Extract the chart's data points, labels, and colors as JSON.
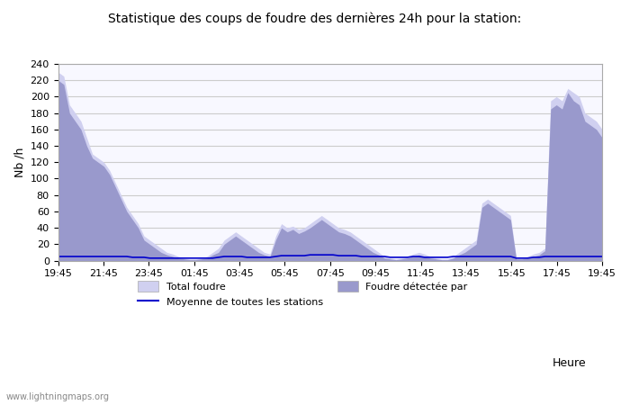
{
  "title": "Statistique des coups de foudre des dernières 24h pour la station:",
  "xlabel": "Heure",
  "ylabel": "Nb /h",
  "ylim": [
    0,
    240
  ],
  "yticks": [
    0,
    20,
    40,
    60,
    80,
    100,
    120,
    140,
    160,
    180,
    200,
    220,
    240
  ],
  "x_labels": [
    "19:45",
    "21:45",
    "23:45",
    "01:45",
    "03:45",
    "05:45",
    "07:45",
    "09:45",
    "11:45",
    "13:45",
    "15:45",
    "17:45",
    "19:45"
  ],
  "watermark": "www.lightningmaps.org",
  "legend_items": [
    {
      "label": "Total foudre",
      "color": "#c8c8e8",
      "type": "patch"
    },
    {
      "label": "Moyenne de toutes les stations",
      "color": "#0000cc",
      "type": "line"
    },
    {
      "label": "Foudre détectée par",
      "color": "#9999cc",
      "type": "patch"
    }
  ],
  "fill_color_total": "#d0d0f0",
  "fill_color_detected": "#9999cc",
  "line_color_mean": "#0000cc",
  "bg_color": "#ffffff",
  "plot_bg_color": "#f8f8ff",
  "grid_color": "#cccccc",
  "total_foudre": [
    230,
    225,
    190,
    180,
    170,
    150,
    130,
    125,
    120,
    110,
    95,
    80,
    65,
    55,
    45,
    30,
    25,
    20,
    15,
    10,
    8,
    5,
    3,
    2,
    2,
    3,
    5,
    10,
    15,
    25,
    30,
    35,
    30,
    25,
    20,
    15,
    10,
    8,
    30,
    45,
    40,
    42,
    38,
    40,
    45,
    50,
    55,
    50,
    45,
    40,
    38,
    35,
    30,
    25,
    20,
    15,
    10,
    5,
    3,
    2,
    3,
    5,
    8,
    10,
    8,
    5,
    3,
    2,
    2,
    5,
    10,
    15,
    20,
    25,
    70,
    75,
    70,
    65,
    60,
    55,
    3,
    3,
    5,
    8,
    10,
    15,
    195,
    200,
    195,
    210,
    205,
    200,
    180,
    175,
    170,
    160
  ],
  "detected_foudre": [
    220,
    215,
    180,
    170,
    160,
    140,
    125,
    120,
    115,
    105,
    90,
    75,
    60,
    50,
    40,
    25,
    20,
    15,
    10,
    7,
    5,
    3,
    2,
    1,
    1,
    2,
    3,
    7,
    10,
    20,
    25,
    30,
    25,
    20,
    15,
    10,
    7,
    5,
    25,
    40,
    35,
    38,
    33,
    36,
    40,
    45,
    50,
    45,
    40,
    35,
    33,
    30,
    25,
    20,
    15,
    10,
    7,
    3,
    2,
    1,
    2,
    3,
    5,
    7,
    5,
    3,
    2,
    1,
    1,
    3,
    7,
    10,
    15,
    20,
    65,
    70,
    65,
    60,
    55,
    50,
    2,
    2,
    3,
    5,
    7,
    12,
    185,
    190,
    185,
    205,
    195,
    190,
    170,
    165,
    160,
    150
  ],
  "mean_line": [
    5,
    5,
    5,
    5,
    5,
    5,
    5,
    5,
    5,
    5,
    5,
    5,
    5,
    4,
    4,
    4,
    3,
    3,
    3,
    3,
    3,
    3,
    3,
    3,
    3,
    3,
    3,
    3,
    4,
    5,
    5,
    5,
    5,
    4,
    4,
    4,
    4,
    4,
    5,
    6,
    6,
    6,
    6,
    6,
    7,
    7,
    7,
    7,
    7,
    6,
    6,
    6,
    6,
    5,
    5,
    5,
    5,
    5,
    4,
    4,
    4,
    4,
    5,
    5,
    4,
    4,
    4,
    4,
    4,
    5,
    5,
    5,
    5,
    5,
    5,
    5,
    5,
    5,
    5,
    5,
    3,
    3,
    3,
    4,
    4,
    5,
    5,
    5,
    5,
    5,
    5,
    5,
    5,
    5,
    5,
    5
  ]
}
